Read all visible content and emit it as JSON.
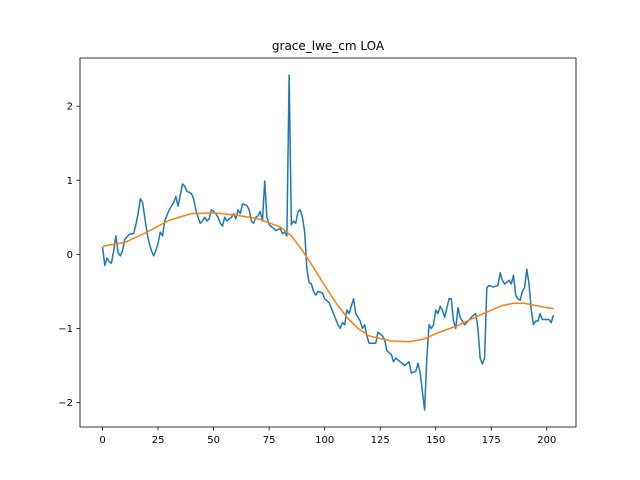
{
  "chart_data": {
    "type": "line",
    "title": "grace_lwe_cm LOA",
    "xlim": [
      -10.15,
      213.15
    ],
    "ylim": [
      -2.33,
      2.65
    ],
    "xticks": [
      0,
      25,
      50,
      75,
      100,
      125,
      150,
      175,
      200
    ],
    "yticks": [
      {
        "value": -2,
        "label": "−2"
      },
      {
        "value": -1,
        "label": "−1"
      },
      0,
      1,
      2
    ],
    "series": [
      {
        "color": "#1f77b4",
        "x": [
          0,
          1,
          2,
          3,
          4,
          5,
          6,
          7,
          8,
          9,
          10,
          12,
          14,
          15,
          16,
          17,
          18,
          19,
          20,
          21,
          22,
          23,
          24,
          25,
          26,
          27,
          28,
          30,
          32,
          33,
          34,
          35,
          36,
          37,
          38,
          40,
          41,
          42,
          43,
          44,
          45,
          46,
          47,
          48,
          49,
          50,
          51,
          52,
          53,
          54,
          55,
          56,
          58,
          59,
          60,
          61,
          62,
          63,
          65,
          66,
          67,
          68,
          69,
          70,
          71,
          72,
          73,
          74,
          75,
          77,
          78,
          80,
          81,
          82,
          83,
          84,
          85,
          86,
          87,
          88,
          89,
          90,
          91,
          92,
          93,
          94,
          95,
          96,
          97,
          99,
          100,
          102,
          104,
          106,
          107,
          108,
          109,
          110,
          111,
          112,
          113,
          114,
          116,
          117,
          118,
          119,
          120,
          123,
          124,
          126,
          127,
          128,
          130,
          131,
          132,
          134,
          136,
          138,
          139,
          141,
          142,
          143,
          145,
          146,
          147,
          148,
          149,
          150,
          151,
          152,
          153,
          154,
          156,
          157,
          158,
          159,
          160,
          161,
          162,
          163,
          164,
          166,
          167,
          168,
          169,
          170,
          171,
          172,
          173,
          174,
          176,
          178,
          179,
          180,
          181,
          183,
          184,
          185,
          186,
          187,
          188,
          189,
          190,
          191,
          192,
          193,
          194,
          195,
          196,
          197,
          198,
          200,
          201,
          202,
          203
        ],
        "values": [
          0.1,
          -0.15,
          -0.05,
          -0.1,
          -0.12,
          0.05,
          0.25,
          0.02,
          -0.02,
          0.05,
          0.2,
          0.27,
          0.28,
          0.4,
          0.55,
          0.75,
          0.7,
          0.5,
          0.3,
          0.15,
          0.05,
          -0.02,
          0.05,
          0.15,
          0.3,
          0.25,
          0.45,
          0.6,
          0.7,
          0.78,
          0.65,
          0.8,
          0.95,
          0.92,
          0.85,
          0.82,
          0.75,
          0.6,
          0.5,
          0.42,
          0.45,
          0.5,
          0.45,
          0.48,
          0.6,
          0.58,
          0.55,
          0.5,
          0.42,
          0.38,
          0.5,
          0.45,
          0.5,
          0.55,
          0.48,
          0.6,
          0.55,
          0.68,
          0.66,
          0.6,
          0.45,
          0.42,
          0.5,
          0.52,
          0.58,
          0.45,
          0.99,
          0.5,
          0.4,
          0.35,
          0.32,
          0.35,
          0.28,
          0.3,
          0.25,
          2.42,
          0.4,
          0.45,
          0.42,
          0.58,
          0.6,
          0.5,
          0.3,
          -0.2,
          -0.38,
          -0.4,
          -0.5,
          -0.55,
          -0.5,
          -0.52,
          -0.6,
          -0.65,
          -0.8,
          -0.95,
          -1.0,
          -0.92,
          -0.95,
          -0.75,
          -0.8,
          -0.7,
          -0.6,
          -0.8,
          -0.9,
          -1.0,
          -0.95,
          -1.1,
          -1.2,
          -1.2,
          -1.05,
          -1.1,
          -1.15,
          -1.3,
          -1.35,
          -1.45,
          -1.4,
          -1.45,
          -1.5,
          -1.45,
          -1.6,
          -1.58,
          -1.47,
          -1.6,
          -2.1,
          -1.4,
          -0.95,
          -1.0,
          -0.95,
          -0.75,
          -0.8,
          -0.7,
          -0.75,
          -0.85,
          -0.6,
          -0.6,
          -0.9,
          -1.0,
          -0.72,
          -0.85,
          -0.9,
          -0.95,
          -0.92,
          -0.85,
          -0.82,
          -0.8,
          -1.0,
          -1.4,
          -1.48,
          -1.4,
          -0.45,
          -0.42,
          -0.44,
          -0.42,
          -0.25,
          -0.35,
          -0.4,
          -0.35,
          -0.4,
          -0.28,
          -0.55,
          -0.6,
          -0.62,
          -0.5,
          -0.45,
          -0.2,
          -0.4,
          -0.75,
          -0.95,
          -0.9,
          -0.9,
          -0.8,
          -0.88,
          -0.88,
          -0.88,
          -0.92,
          -0.82
        ]
      },
      {
        "color": "#ff7f0e",
        "x": [
          0,
          10,
          20,
          30,
          40,
          50,
          60,
          70,
          80,
          85,
          90,
          95,
          100,
          105,
          110,
          115,
          120,
          130,
          138,
          145,
          150,
          160,
          170,
          180,
          185,
          190,
          195,
          200,
          203
        ],
        "values": [
          0.11,
          0.16,
          0.3,
          0.46,
          0.55,
          0.56,
          0.53,
          0.48,
          0.37,
          0.25,
          0.05,
          -0.18,
          -0.42,
          -0.65,
          -0.85,
          -1.0,
          -1.1,
          -1.17,
          -1.18,
          -1.14,
          -1.07,
          -0.96,
          -0.82,
          -0.69,
          -0.66,
          -0.66,
          -0.69,
          -0.72,
          -0.73
        ]
      }
    ]
  }
}
